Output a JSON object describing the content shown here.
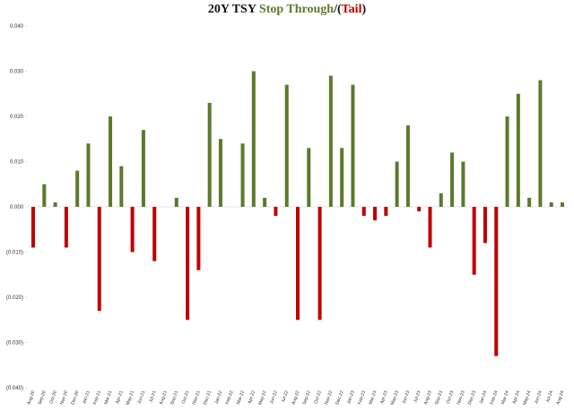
{
  "chart_data": {
    "type": "bar",
    "title_parts": [
      "20Y TSY ",
      "Stop Through",
      "/",
      "(",
      "Tail",
      ")"
    ],
    "positive_color": "#5b7a2c",
    "negative_color": "#c00000",
    "categories": [
      "Aug-20",
      "Sep-20",
      "Oct-20",
      "Nov-20",
      "Dec-20",
      "Jan-21",
      "Feb-21",
      "Mar-21",
      "Apr-21",
      "May-21",
      "Jun-21",
      "Jul-21",
      "Aug-21",
      "Sep-21",
      "Oct-21",
      "Nov-21",
      "Dec-21",
      "Jan-22",
      "Feb-22",
      "Mar-22",
      "Apr-22",
      "May-22",
      "Jun-22",
      "Jul-22",
      "Aug-22",
      "Sep-22",
      "Oct-22",
      "Nov-22",
      "Dec-22",
      "Jan-23",
      "Feb-23",
      "Mar-23",
      "Apr-23",
      "May-23",
      "Jun-23",
      "Jul-23",
      "Aug-23",
      "Sep-23",
      "Oct-23",
      "Nov-23",
      "Dec-23",
      "Jan-24",
      "Feb-24",
      "Mar-24",
      "Apr-24",
      "May-24",
      "Jun-24",
      "Jul-24",
      "Aug-24"
    ],
    "values": [
      -0.009,
      0.005,
      0.001,
      -0.009,
      0.008,
      0.014,
      -0.023,
      0.02,
      0.009,
      -0.01,
      0.017,
      -0.012,
      null,
      0.002,
      -0.025,
      -0.014,
      0.023,
      0.015,
      null,
      0.014,
      0.03,
      0.002,
      -0.002,
      0.027,
      -0.025,
      0.013,
      -0.025,
      0.029,
      0.013,
      0.027,
      -0.002,
      -0.003,
      -0.002,
      0.01,
      0.018,
      -0.001,
      -0.009,
      0.003,
      0.012,
      0.01,
      -0.015,
      -0.008,
      -0.033,
      0.02,
      0.025,
      0.002,
      0.028,
      0.001,
      0.001
    ],
    "ylim": [
      -0.04,
      0.04
    ],
    "yticks": [
      {
        "value": 0.04,
        "label": "0.040"
      },
      {
        "value": 0.03,
        "label": "0.030"
      },
      {
        "value": 0.02,
        "label": "0.020"
      },
      {
        "value": 0.01,
        "label": "0.010"
      },
      {
        "value": 0,
        "label": "0.000"
      },
      {
        "value": -0.01,
        "label": "(0.010)"
      },
      {
        "value": -0.02,
        "label": "(0.020)"
      },
      {
        "value": -0.03,
        "label": "(0.030)"
      },
      {
        "value": -0.04,
        "label": "(0.040)"
      }
    ]
  }
}
